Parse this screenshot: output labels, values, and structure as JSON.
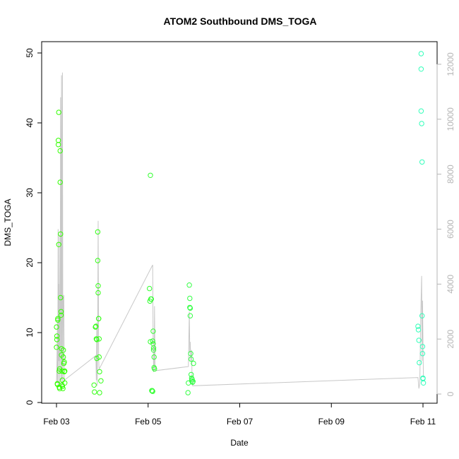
{
  "chart_data": {
    "type": "scatter",
    "title": "ATOM2 Southbound DMS_TOGA",
    "xlabel": "Date",
    "ylabel": "DMS_TOGA",
    "x_ticks": [
      "Feb 03",
      "Feb 05",
      "Feb 07",
      "Feb 09",
      "Feb 11"
    ],
    "x_tick_values": [
      0,
      2,
      4,
      6,
      8
    ],
    "xlim": [
      -0.2,
      8.3
    ],
    "ylim": [
      0,
      50
    ],
    "y_ticks": [
      0,
      10,
      20,
      30,
      40,
      50
    ],
    "right_ylim": [
      0,
      12500
    ],
    "right_ticks": [
      0,
      2000,
      4000,
      6000,
      8000,
      10000,
      12000
    ],
    "grid": false,
    "colors": {
      "points_start": "#33ff00",
      "points_end": "#33ffbb",
      "line": "#c8c8c8",
      "right_axis": "#b5b5b5"
    },
    "series": [
      {
        "type": "points",
        "axis": "left",
        "points": [
          [
            0.0,
            10.8
          ],
          [
            0.0,
            7.9
          ],
          [
            0.01,
            9.0
          ],
          [
            0.01,
            9.5
          ],
          [
            0.02,
            2.7
          ],
          [
            0.02,
            2.6
          ],
          [
            0.03,
            11.8
          ],
          [
            0.03,
            12.0
          ],
          [
            0.04,
            37.5
          ],
          [
            0.04,
            36.9
          ],
          [
            0.05,
            41.5
          ],
          [
            0.05,
            22.6
          ],
          [
            0.06,
            2.2
          ],
          [
            0.06,
            4.5
          ],
          [
            0.07,
            4.8
          ],
          [
            0.07,
            2.0
          ],
          [
            0.08,
            36.0
          ],
          [
            0.08,
            31.5
          ],
          [
            0.09,
            24.1
          ],
          [
            0.09,
            15.0
          ],
          [
            0.1,
            13.0
          ],
          [
            0.1,
            12.5
          ],
          [
            0.11,
            7.7
          ],
          [
            0.11,
            6.8
          ],
          [
            0.12,
            4.5
          ],
          [
            0.12,
            2.5
          ],
          [
            0.13,
            3.2
          ],
          [
            0.13,
            2.3
          ],
          [
            0.14,
            2.0
          ],
          [
            0.15,
            7.5
          ],
          [
            0.15,
            6.5
          ],
          [
            0.16,
            5.6
          ],
          [
            0.17,
            5.8
          ],
          [
            0.17,
            4.4
          ],
          [
            0.18,
            4.5
          ],
          [
            0.18,
            2.8
          ],
          [
            0.82,
            2.5
          ],
          [
            0.83,
            1.5
          ],
          [
            0.85,
            10.8
          ],
          [
            0.86,
            10.9
          ],
          [
            0.87,
            9.1
          ],
          [
            0.88,
            9.0
          ],
          [
            0.88,
            6.3
          ],
          [
            0.9,
            24.4
          ],
          [
            0.9,
            20.3
          ],
          [
            0.91,
            16.7
          ],
          [
            0.91,
            15.7
          ],
          [
            0.92,
            12.0
          ],
          [
            0.92,
            12.0
          ],
          [
            0.93,
            9.1
          ],
          [
            0.93,
            6.5
          ],
          [
            0.94,
            4.4
          ],
          [
            0.94,
            1.4
          ],
          [
            0.97,
            3.1
          ],
          [
            2.03,
            16.3
          ],
          [
            2.04,
            14.5
          ],
          [
            2.05,
            8.7
          ],
          [
            2.06,
            14.8
          ],
          [
            2.07,
            14.8
          ],
          [
            2.05,
            32.5
          ],
          [
            2.08,
            1.7
          ],
          [
            2.09,
            1.7
          ],
          [
            2.1,
            1.6
          ],
          [
            2.1,
            8.8
          ],
          [
            2.11,
            10.2
          ],
          [
            2.11,
            8.4
          ],
          [
            2.12,
            7.5
          ],
          [
            2.12,
            7.8
          ],
          [
            2.13,
            6.5
          ],
          [
            2.13,
            5.0
          ],
          [
            2.14,
            4.8
          ],
          [
            2.87,
            1.4
          ],
          [
            2.88,
            2.8
          ],
          [
            2.9,
            16.8
          ],
          [
            2.91,
            14.9
          ],
          [
            2.91,
            13.6
          ],
          [
            2.92,
            13.5
          ],
          [
            2.92,
            12.4
          ],
          [
            2.93,
            7.0
          ],
          [
            2.94,
            6.2
          ],
          [
            2.94,
            4.0
          ],
          [
            2.95,
            3.5
          ],
          [
            2.95,
            3.1
          ],
          [
            2.96,
            3.3
          ],
          [
            2.97,
            2.9
          ],
          [
            2.98,
            3.0
          ],
          [
            2.99,
            5.6
          ],
          [
            7.89,
            10.9
          ],
          [
            7.9,
            10.4
          ],
          [
            7.91,
            8.9
          ],
          [
            7.92,
            5.7
          ],
          [
            7.96,
            49.9
          ],
          [
            7.96,
            47.7
          ],
          [
            7.96,
            41.7
          ],
          [
            7.97,
            39.9
          ],
          [
            7.98,
            34.4
          ],
          [
            7.98,
            12.4
          ],
          [
            7.99,
            8.0
          ],
          [
            7.99,
            7.0
          ],
          [
            8.0,
            3.5
          ],
          [
            8.0,
            3.4
          ],
          [
            8.01,
            2.8
          ]
        ]
      },
      {
        "type": "line",
        "axis": "right",
        "points": [
          [
            0.0,
            400
          ],
          [
            0.01,
            1100
          ],
          [
            0.02,
            2600
          ],
          [
            0.02,
            400
          ],
          [
            0.03,
            2000
          ],
          [
            0.035,
            6000
          ],
          [
            0.04,
            300
          ],
          [
            0.045,
            2900
          ],
          [
            0.05,
            4000
          ],
          [
            0.055,
            1200
          ],
          [
            0.06,
            5800
          ],
          [
            0.07,
            300
          ],
          [
            0.08,
            1500
          ],
          [
            0.09,
            10800
          ],
          [
            0.1,
            500
          ],
          [
            0.11,
            11600
          ],
          [
            0.12,
            300
          ],
          [
            0.13,
            11700
          ],
          [
            0.14,
            500
          ],
          [
            0.15,
            3500
          ],
          [
            0.16,
            3600
          ],
          [
            0.17,
            700
          ],
          [
            0.17,
            500
          ],
          [
            0.86,
            1400
          ],
          [
            0.87,
            500
          ],
          [
            0.88,
            2600
          ],
          [
            0.89,
            300
          ],
          [
            0.9,
            2700
          ],
          [
            0.91,
            6300
          ],
          [
            0.92,
            1300
          ],
          [
            0.93,
            900
          ],
          [
            2.1,
            4700
          ],
          [
            2.11,
            1600
          ],
          [
            2.11,
            2300
          ],
          [
            2.12,
            800
          ],
          [
            2.13,
            900
          ],
          [
            2.14,
            3200
          ],
          [
            2.15,
            1000
          ],
          [
            2.16,
            850
          ],
          [
            2.88,
            1000
          ],
          [
            2.9,
            3000
          ],
          [
            2.91,
            1500
          ],
          [
            2.92,
            1900
          ],
          [
            2.93,
            1200
          ],
          [
            2.94,
            1400
          ],
          [
            2.95,
            1600
          ],
          [
            2.96,
            500
          ],
          [
            2.97,
            300
          ],
          [
            7.89,
            600
          ],
          [
            7.91,
            200
          ],
          [
            7.93,
            400
          ],
          [
            7.95,
            2800
          ],
          [
            7.97,
            4300
          ],
          [
            7.98,
            1200
          ],
          [
            7.99,
            3400
          ],
          [
            8.0,
            1900
          ],
          [
            8.01,
            600
          ]
        ]
      }
    ]
  }
}
